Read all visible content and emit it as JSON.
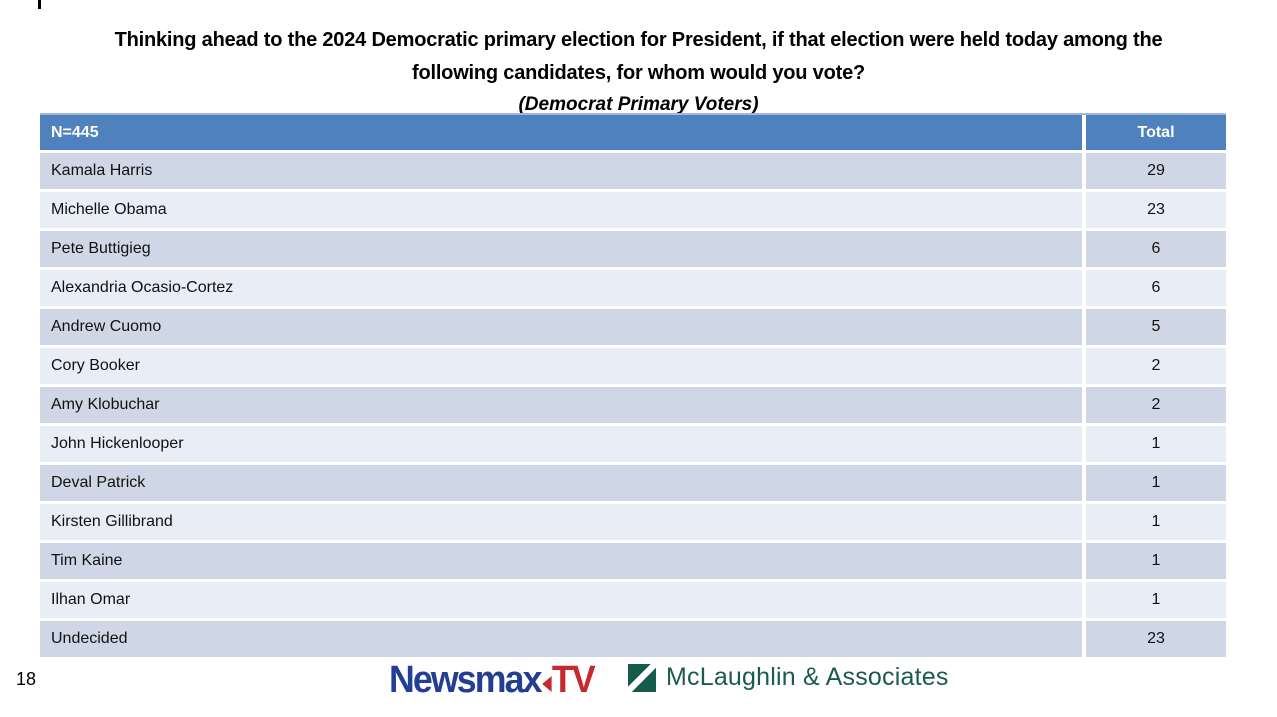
{
  "page": {
    "number": "18"
  },
  "title": {
    "line1": "Thinking ahead to the 2024 Democratic primary election for President, if that election were held today among the",
    "line2": "following candidates, for whom would you vote?",
    "subtitle": "(Democrat Primary Voters)"
  },
  "chart_data": {
    "type": "table",
    "title": "Thinking ahead to the 2024 Democratic primary election for President, if that election were held today among the following candidates, for whom would you vote?",
    "subtitle": "(Democrat Primary Voters)",
    "sample_size_label": "N=445",
    "columns": [
      "N=445",
      "Total"
    ],
    "rows": [
      [
        "Kamala Harris",
        29
      ],
      [
        "Michelle Obama",
        23
      ],
      [
        "Pete Buttigieg",
        6
      ],
      [
        "Alexandria Ocasio-Cortez",
        6
      ],
      [
        "Andrew Cuomo",
        5
      ],
      [
        "Cory Booker",
        2
      ],
      [
        "Amy Klobuchar",
        2
      ],
      [
        "John Hickenlooper",
        1
      ],
      [
        "Deval Patrick",
        1
      ],
      [
        "Kirsten Gillibrand",
        1
      ],
      [
        "Tim Kaine",
        1
      ],
      [
        "Ilhan Omar",
        1
      ],
      [
        "Undecided",
        23
      ]
    ]
  },
  "footer": {
    "newsmax_part1": "Newsmax",
    "newsmax_part2": "TV",
    "mclaughlin": "McLaughlin & Associates"
  },
  "colors": {
    "header_blue": "#4E81BD",
    "row_dark": "#CFD6E5",
    "row_light": "#E9EDF5",
    "header_top_border": "#9DB9DC",
    "newsmax_blue": "#233E92",
    "newsmax_red": "#C42A2E",
    "mclaughlin_green": "#1B5B4D"
  }
}
